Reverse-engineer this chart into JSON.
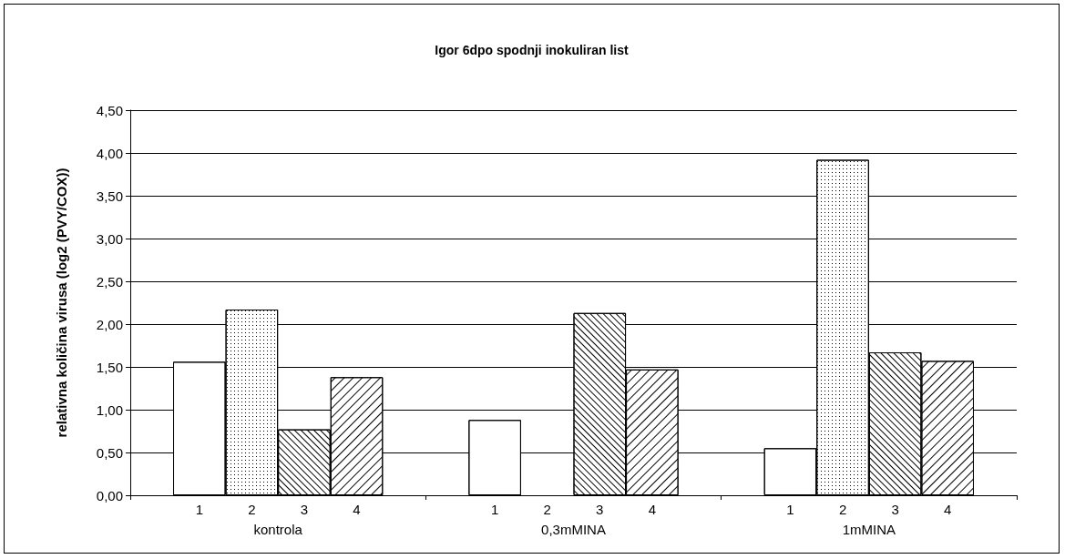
{
  "chart_data": {
    "type": "bar",
    "title": "Igor 6dpo spodnji inokuliran list",
    "ylabel": "relativna količina virusa (log2 (PVY/COX))",
    "categories": [
      "kontrola",
      "0,3mMINA",
      "1mMINA"
    ],
    "series": [
      {
        "name": "1",
        "color": "#ffffff",
        "values": [
          1.56,
          0.88,
          0.55
        ]
      },
      {
        "name": "2",
        "color": "#ffffff",
        "values": [
          2.17,
          0,
          3.92
        ]
      },
      {
        "name": "3",
        "color": "#ffffff",
        "values": [
          0.77,
          2.13,
          1.67
        ]
      },
      {
        "name": "4",
        "color": "#ffffff",
        "values": [
          1.38,
          1.47,
          1.57
        ]
      }
    ],
    "ylim": [
      0,
      4.5
    ],
    "yticks": [
      {
        "value": 0,
        "label": "0,00"
      },
      {
        "value": 0.5,
        "label": "0,50"
      },
      {
        "value": 1,
        "label": "1,00"
      },
      {
        "value": 1.5,
        "label": "1,50"
      },
      {
        "value": 2,
        "label": "2,00"
      },
      {
        "value": 2.5,
        "label": "2,50"
      },
      {
        "value": 3,
        "label": "3,00"
      },
      {
        "value": 3.5,
        "label": "3,50"
      },
      {
        "value": 4,
        "label": "4,00"
      },
      {
        "value": 4.5,
        "label": "4,50"
      }
    ],
    "grid": "y",
    "legend": false
  }
}
